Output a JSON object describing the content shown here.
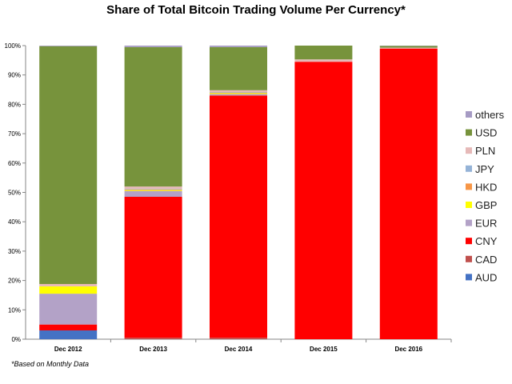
{
  "chart_data": {
    "type": "bar",
    "stacked": true,
    "title": "Share of Total Bitcoin Trading Volume Per Currency*",
    "categories": [
      "Dec 2012",
      "Dec 2013",
      "Dec 2014",
      "Dec 2015",
      "Dec 2016"
    ],
    "ylim": [
      0,
      100
    ],
    "yticks": [
      0,
      10,
      20,
      30,
      40,
      50,
      60,
      70,
      80,
      90,
      100
    ],
    "ytick_format": "%",
    "legend_position": "right",
    "series": [
      {
        "name": "AUD",
        "color": "#4472c4",
        "values": [
          3.0,
          0.0,
          0.0,
          0.0,
          0.0
        ]
      },
      {
        "name": "CAD",
        "color": "#c0504d",
        "values": [
          0.0,
          0.5,
          0.5,
          0.0,
          0.0
        ]
      },
      {
        "name": "CNY",
        "color": "#ff0000",
        "values": [
          2.0,
          48.0,
          82.5,
          94.5,
          99.0
        ]
      },
      {
        "name": "EUR",
        "color": "#b3a2c7",
        "values": [
          10.5,
          2.0,
          0.5,
          0.0,
          0.0
        ]
      },
      {
        "name": "GBP",
        "color": "#ffff00",
        "values": [
          2.5,
          0.3,
          0.3,
          0.0,
          0.0
        ]
      },
      {
        "name": "HKD",
        "color": "#f79646",
        "values": [
          0.0,
          0.2,
          0.2,
          0.0,
          0.0
        ]
      },
      {
        "name": "JPY",
        "color": "#95b3d7",
        "values": [
          0.0,
          0.2,
          0.2,
          0.0,
          0.0
        ]
      },
      {
        "name": "PLN",
        "color": "#e6b9b8",
        "values": [
          0.8,
          0.8,
          0.6,
          0.8,
          0.3
        ]
      },
      {
        "name": "USD",
        "color": "#77933c",
        "values": [
          81.0,
          47.5,
          14.7,
          4.7,
          0.6
        ]
      },
      {
        "name": "others",
        "color": "#a69bc4",
        "values": [
          0.2,
          0.5,
          0.5,
          0.0,
          0.1
        ]
      }
    ]
  },
  "footnote": "*Based on Monthly Data"
}
